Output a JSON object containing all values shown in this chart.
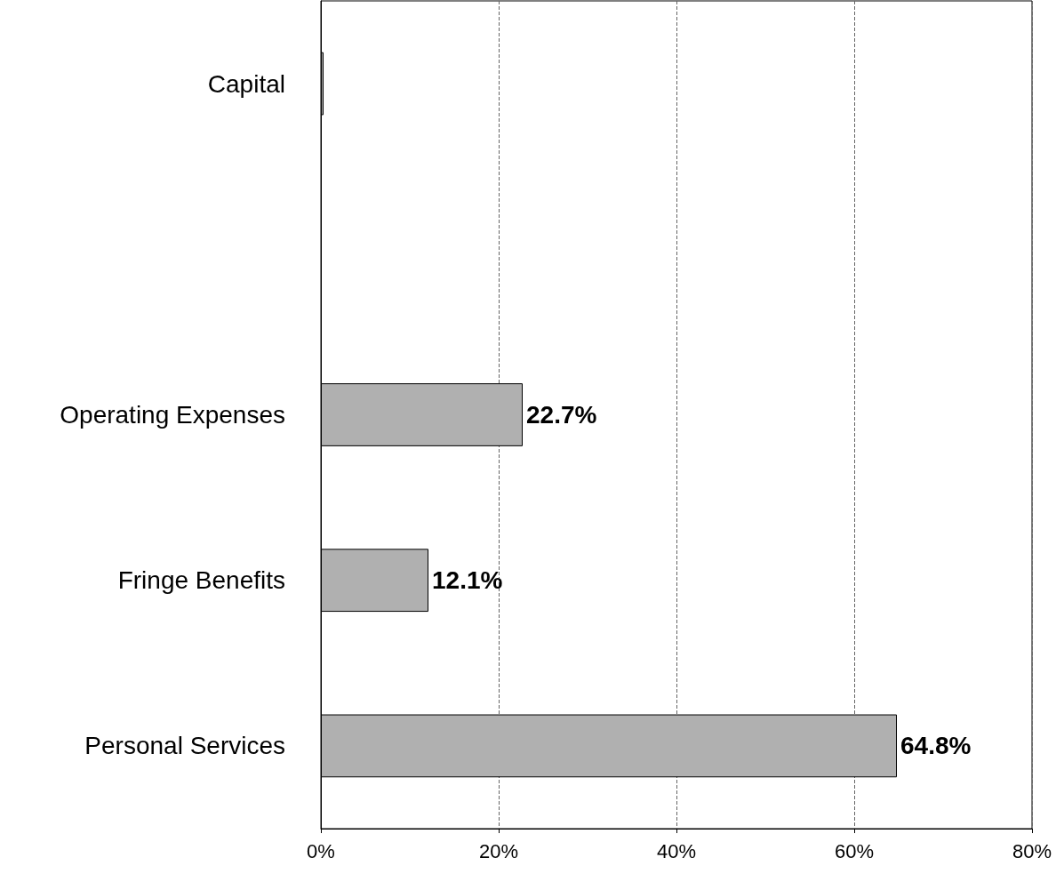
{
  "chart_data": {
    "type": "bar",
    "orientation": "horizontal",
    "categories": [
      "Capital",
      null,
      "Operating Expenses",
      "Fringe Benefits",
      "Personal Services"
    ],
    "values": [
      0.3,
      null,
      22.7,
      12.1,
      64.8
    ],
    "value_labels": [
      null,
      null,
      "22.7%",
      "12.1%",
      "64.8%"
    ],
    "color": "#b0b0b0",
    "xlim": [
      0,
      80
    ],
    "xticks": [
      {
        "value": 0,
        "label": "0%"
      },
      {
        "value": 20,
        "label": "20%"
      },
      {
        "value": 40,
        "label": "40%"
      },
      {
        "value": 60,
        "label": "60%"
      },
      {
        "value": 80,
        "label": "80%"
      }
    ],
    "grid": "x"
  }
}
